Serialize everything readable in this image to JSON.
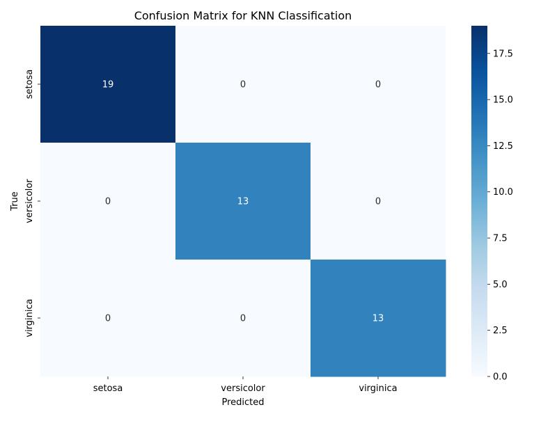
{
  "chart_data": {
    "type": "heatmap",
    "title": "Confusion Matrix for KNN Classification",
    "xlabel": "Predicted",
    "ylabel": "True",
    "x_categories": [
      "setosa",
      "versicolor",
      "virginica"
    ],
    "y_categories": [
      "setosa",
      "versicolor",
      "virginica"
    ],
    "values": [
      [
        19,
        0,
        0
      ],
      [
        0,
        13,
        0
      ],
      [
        0,
        0,
        13
      ]
    ],
    "colormap": "Blues",
    "value_range": [
      0,
      19
    ],
    "colorbar_ticks": [
      "0.0",
      "2.5",
      "5.0",
      "7.5",
      "10.0",
      "12.5",
      "15.0",
      "17.5"
    ],
    "colorbar_tick_values": [
      0,
      2.5,
      5,
      7.5,
      10,
      12.5,
      15,
      17.5
    ],
    "annotations": true,
    "grid": false
  }
}
